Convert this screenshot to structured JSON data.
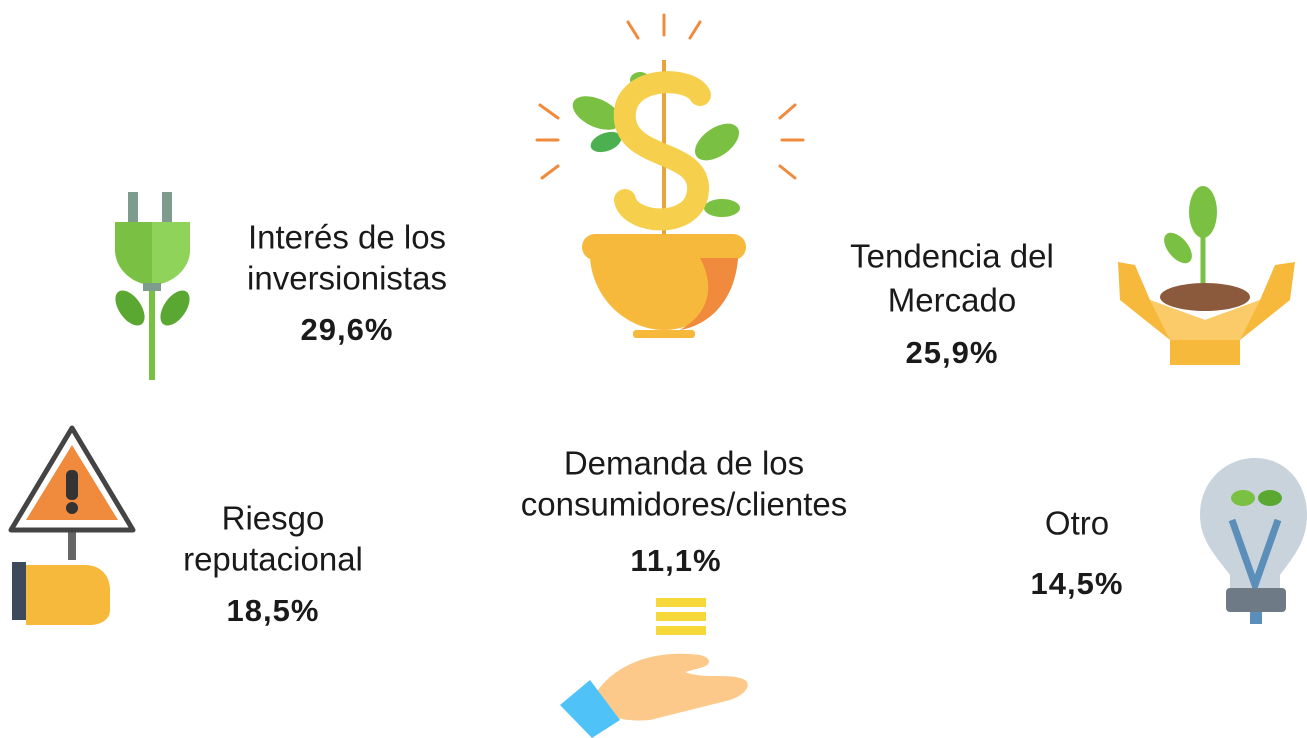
{
  "items": [
    {
      "label": [
        "Interés de los",
        "inversionistas"
      ],
      "value": "29,6%"
    },
    {
      "label": [
        "Tendencia del",
        "Mercado"
      ],
      "value": "25,9%"
    },
    {
      "label": [
        "Riesgo",
        "reputacional"
      ],
      "value": "18,5%"
    },
    {
      "label": [
        "Demanda de los",
        "consumidores/clientes"
      ],
      "value": "11,1%"
    },
    {
      "label": [
        "Otro"
      ],
      "value": "14,5%"
    }
  ]
}
